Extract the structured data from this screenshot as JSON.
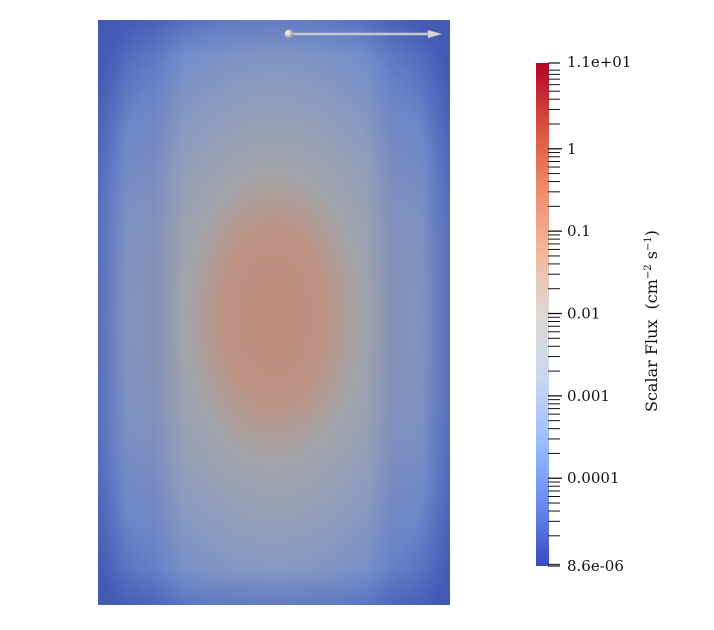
{
  "chart_data": {
    "type": "heatmap",
    "colorbar": {
      "title": "Scalar Flux",
      "unit": "(cm",
      "unit_exp1": "−2",
      "unit_mid": " s",
      "unit_exp2": "−1",
      "unit_close": ")",
      "scale": "log",
      "range": [
        8.6e-06,
        11
      ],
      "min_label": "8.6e-06",
      "max_label": "1.1e+01",
      "ticks": [
        {
          "value": 0.0001,
          "label": "0.0001"
        },
        {
          "value": 0.001,
          "label": "0.001"
        },
        {
          "value": 0.01,
          "label": "0.01"
        },
        {
          "value": 0.1,
          "label": "0.1"
        },
        {
          "value": 1,
          "label": "1"
        }
      ],
      "colormap": [
        "#3b4cc0",
        "#6a8bef",
        "#9ebeff",
        "#c9d8ef",
        "#ddd8d3",
        "#f3b89b",
        "#f08a6c",
        "#d8503f",
        "#b40426"
      ]
    },
    "field": {
      "peak_color": "#c98e78",
      "mid_color": "#a8a9a8",
      "edge_color": "#7490cd",
      "corner_color": "#3f56b2"
    },
    "glyph": {
      "type": "arrow",
      "color": "#d8d8d8"
    }
  }
}
